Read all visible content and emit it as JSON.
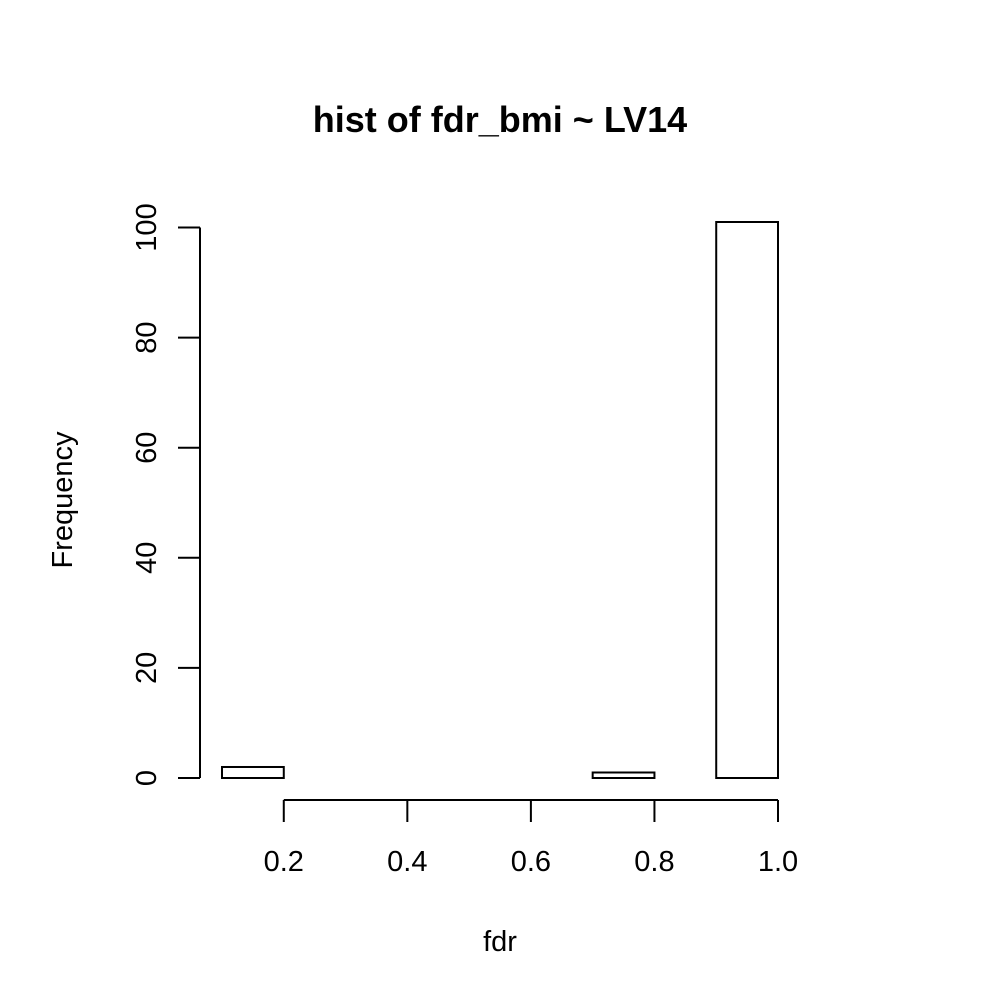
{
  "chart_data": {
    "type": "bar",
    "title": "hist of fdr_bmi ~ LV14",
    "xlabel": "fdr",
    "ylabel": "Frequency",
    "bin_edges": [
      0.1,
      0.2,
      0.3,
      0.4,
      0.5,
      0.6,
      0.7,
      0.8,
      0.9,
      1.0
    ],
    "values": [
      2,
      0,
      0,
      0,
      0,
      0,
      1,
      0,
      101
    ],
    "xlim": [
      0.1,
      1.0
    ],
    "ylim": [
      0,
      101
    ],
    "x_ticks": [
      0.2,
      0.4,
      0.6,
      0.8,
      1.0
    ],
    "x_tick_labels": [
      "0.2",
      "0.4",
      "0.6",
      "0.8",
      "1.0"
    ],
    "y_ticks": [
      0,
      20,
      40,
      60,
      80,
      100
    ],
    "y_tick_labels": [
      "0",
      "20",
      "40",
      "60",
      "80",
      "100"
    ],
    "grid": false,
    "legend": "none",
    "bar_fill": "#ffffff",
    "bar_stroke": "#000000"
  }
}
